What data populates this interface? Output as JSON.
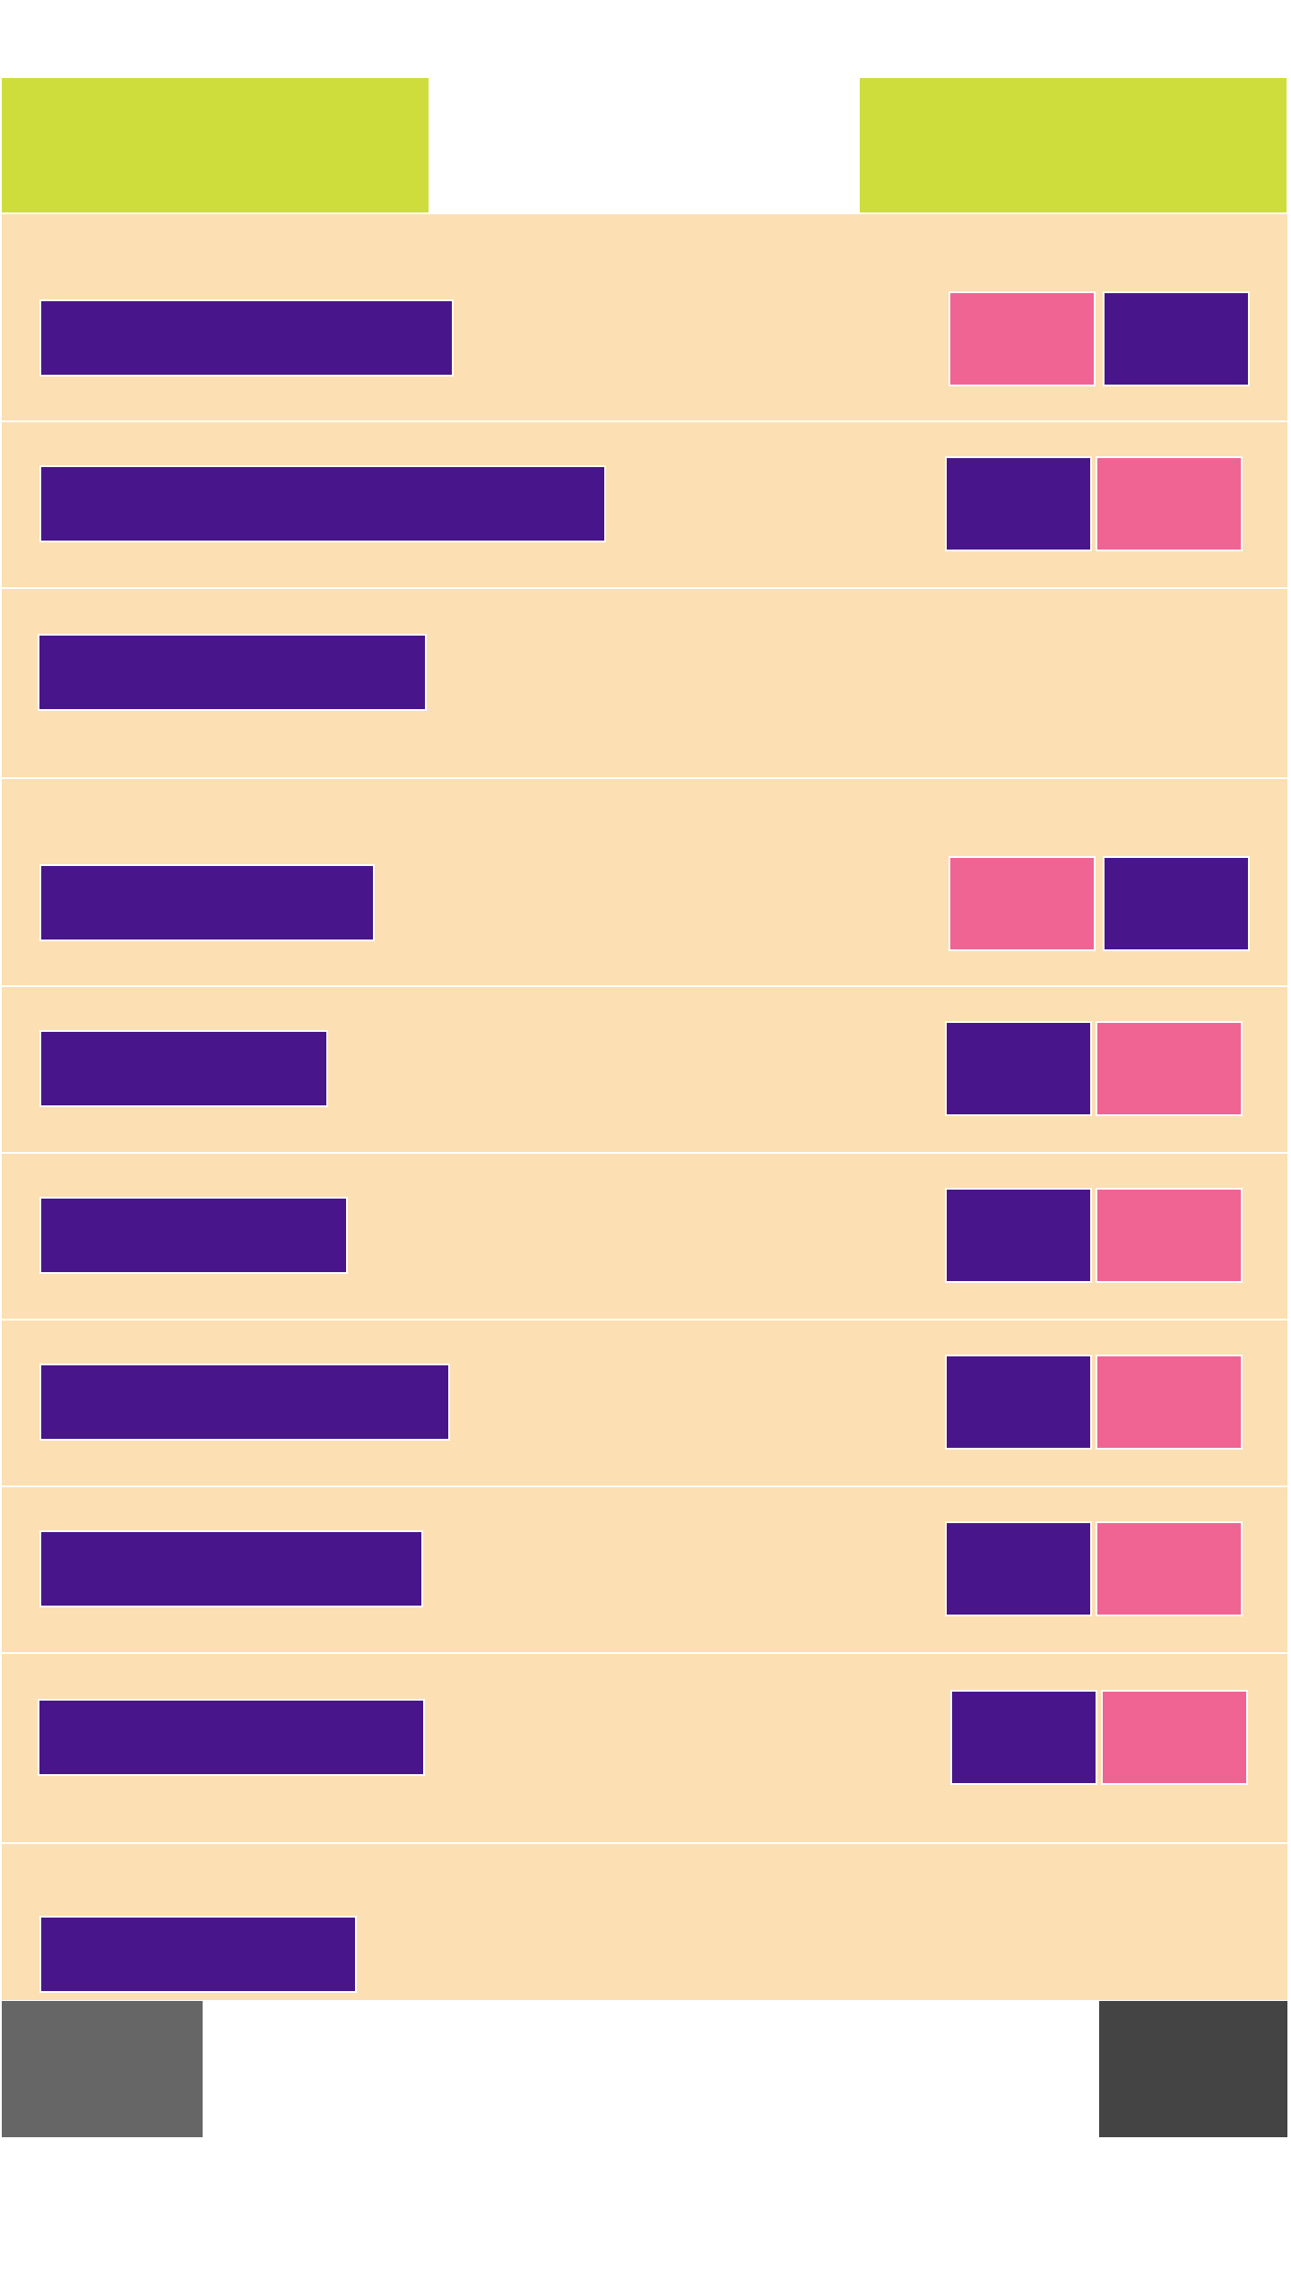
{
  "colors": {
    "header": "#cfdd3c",
    "row_background": "#fcdfb3",
    "label_bar": "#48168a",
    "pink_button": "#f06493",
    "purple_button": "#48168a",
    "footer_left": "#666666",
    "footer_right": "#444444"
  },
  "header": {
    "left_label": "",
    "right_label": ""
  },
  "rows": [
    {
      "label": "",
      "buttons": [
        "pink",
        "purple"
      ]
    },
    {
      "label": "",
      "buttons": [
        "purple",
        "pink"
      ]
    },
    {
      "label": "",
      "buttons": []
    },
    {
      "label": "",
      "buttons": [
        "pink",
        "purple"
      ]
    },
    {
      "label": "",
      "buttons": [
        "purple",
        "pink"
      ]
    },
    {
      "label": "",
      "buttons": [
        "purple",
        "pink"
      ]
    },
    {
      "label": "",
      "buttons": [
        "purple",
        "pink"
      ]
    },
    {
      "label": "",
      "buttons": [
        "purple",
        "pink"
      ]
    },
    {
      "label": "",
      "buttons": [
        "purple",
        "pink"
      ]
    },
    {
      "label": "",
      "buttons": []
    }
  ],
  "footer": {
    "left_label": "",
    "right_label": ""
  }
}
